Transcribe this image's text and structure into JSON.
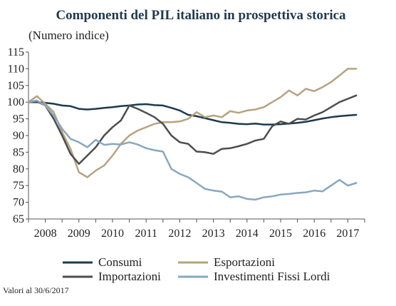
{
  "chart_data": {
    "type": "line",
    "title": "Componenti del PIL italiano in prospettiva storica",
    "subtitle": "(Numero indice)",
    "note": "Valori al 30/6/2017",
    "ylim": [
      65,
      115
    ],
    "yticks": [
      65,
      70,
      75,
      80,
      85,
      90,
      95,
      100,
      105,
      110,
      115
    ],
    "xlim": [
      2007.5,
      2017.5
    ],
    "xticks": [
      2008,
      2009,
      2010,
      2011,
      2012,
      2013,
      2014,
      2015,
      2016,
      2017
    ],
    "grid": false,
    "legend_position": "bottom",
    "x": [
      2007.5,
      2007.75,
      2008.0,
      2008.25,
      2008.5,
      2008.75,
      2009.0,
      2009.25,
      2009.5,
      2009.75,
      2010.0,
      2010.25,
      2010.5,
      2010.75,
      2011.0,
      2011.25,
      2011.5,
      2011.75,
      2012.0,
      2012.25,
      2012.5,
      2012.75,
      2013.0,
      2013.25,
      2013.5,
      2013.75,
      2014.0,
      2014.25,
      2014.5,
      2014.75,
      2015.0,
      2015.25,
      2015.5,
      2015.75,
      2016.0,
      2016.25,
      2016.5,
      2016.75,
      2017.0,
      2017.25
    ],
    "series": [
      {
        "name": "Consumi",
        "color": "#1b3a4f",
        "values": [
          100,
          100,
          99.8,
          99.5,
          99,
          98.8,
          98,
          97.8,
          98,
          98.3,
          98.5,
          98.8,
          99,
          99.3,
          99.4,
          99.1,
          99,
          98.3,
          97.5,
          96.2,
          95.8,
          95.2,
          94.6,
          94,
          93.8,
          93.5,
          93.4,
          93.6,
          93.3,
          93.3,
          93.4,
          93.6,
          93.8,
          94.1,
          94.6,
          95.1,
          95.5,
          95.8,
          96,
          96.2
        ]
      },
      {
        "name": "Esportazioni",
        "color": "#b6a37f",
        "values": [
          100,
          101.8,
          99.5,
          97,
          91,
          86,
          79,
          77.5,
          79.5,
          81,
          84,
          87.5,
          90,
          91.5,
          92.5,
          93.5,
          94,
          94,
          94.2,
          95,
          97,
          95.5,
          96,
          95.5,
          97.3,
          96.8,
          97.5,
          97.8,
          98.5,
          100,
          101.5,
          103.5,
          102,
          104,
          103.3,
          104.5,
          106,
          108,
          110,
          110
        ]
      },
      {
        "name": "Importazioni",
        "color": "#4d4d4d",
        "values": [
          100,
          100.2,
          99,
          95,
          90,
          84.5,
          81.5,
          84,
          86.5,
          90,
          92.5,
          94.5,
          99,
          98,
          96.8,
          95.5,
          93.5,
          90,
          88,
          87.5,
          85.2,
          85,
          84.5,
          86,
          86.2,
          86.8,
          87.5,
          88.5,
          89,
          92.8,
          94.2,
          93.5,
          95,
          94.8,
          96,
          97,
          98.5,
          100,
          101,
          102
        ]
      },
      {
        "name": "Investimenti Fissi Lordi",
        "color": "#87a7c2",
        "values": [
          100,
          100.5,
          99,
          96,
          92,
          89,
          88,
          86.5,
          88.7,
          87.2,
          87.5,
          87.3,
          88,
          87.3,
          86.2,
          85.6,
          85.2,
          80,
          78.5,
          77.5,
          75.8,
          74,
          73.5,
          73.2,
          71.5,
          71.8,
          71,
          70.8,
          71.5,
          71.8,
          72.3,
          72.5,
          72.8,
          73,
          73.5,
          73.3,
          75,
          76.7,
          75,
          75.8
        ]
      }
    ]
  }
}
